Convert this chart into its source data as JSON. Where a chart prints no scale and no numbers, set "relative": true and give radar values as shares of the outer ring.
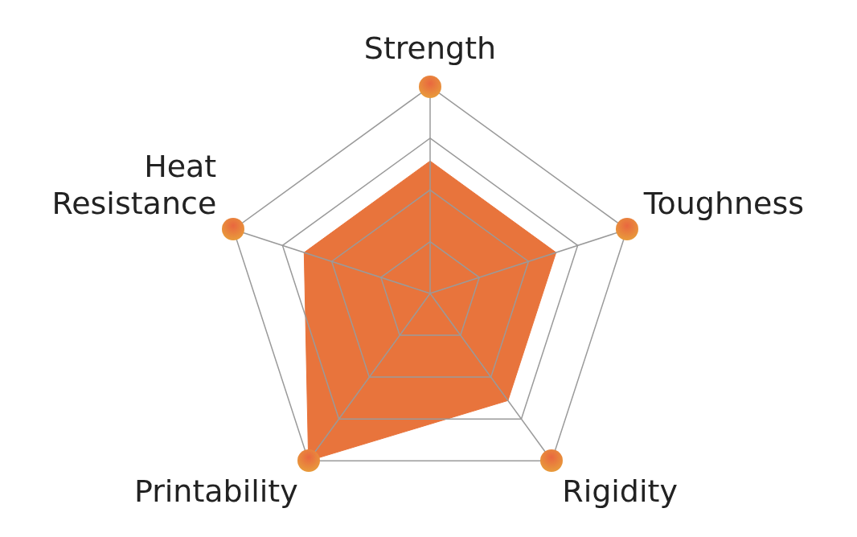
{
  "chart_data": {
    "type": "radar",
    "relative": true,
    "grid": true,
    "legend": false,
    "marker": "none",
    "categories": [
      "Strength",
      "Toughness",
      "Rigidity",
      "Printability",
      "Heat Resistance"
    ],
    "series": [
      {
        "color": "#e8743c",
        "values": [
          0.64,
          0.64,
          0.64,
          1,
          0.64
        ]
      }
    ]
  }
}
